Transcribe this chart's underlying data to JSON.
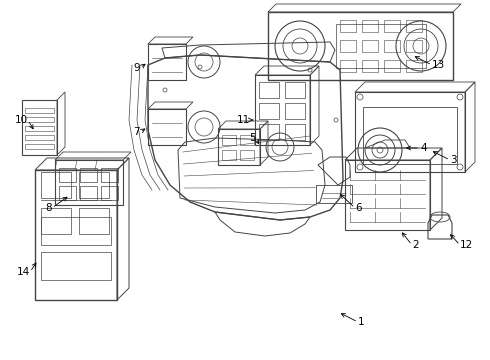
{
  "background_color": "#ffffff",
  "line_color": "#444444",
  "text_color": "#000000",
  "figsize": [
    4.9,
    3.6
  ],
  "dpi": 100
}
